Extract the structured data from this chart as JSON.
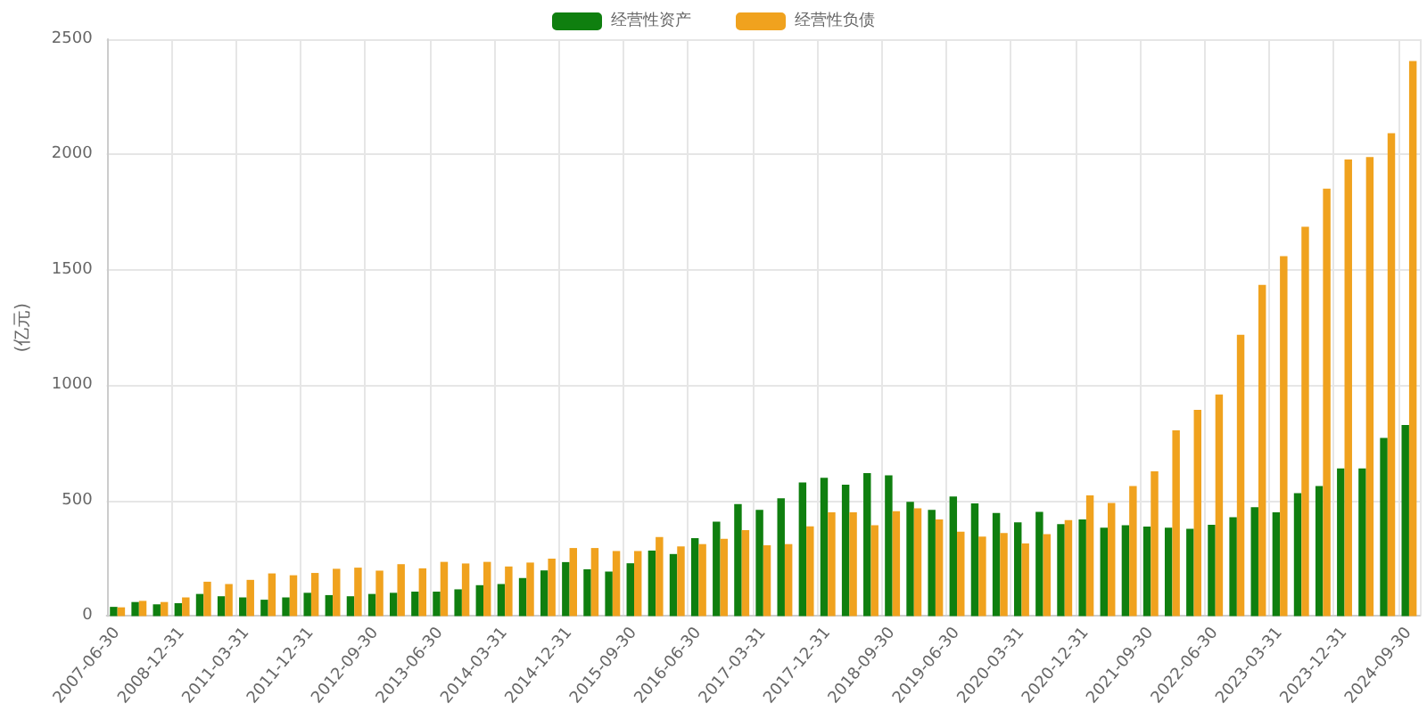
{
  "chart_data": {
    "type": "bar",
    "ylabel": "(亿元)",
    "categories": [
      "2007-06-30",
      null,
      null,
      "2008-12-31",
      null,
      null,
      "2011-03-31",
      null,
      null,
      "2011-12-31",
      null,
      null,
      "2012-09-30",
      null,
      null,
      "2013-06-30",
      null,
      null,
      "2014-03-31",
      null,
      null,
      "2014-12-31",
      null,
      null,
      "2015-09-30",
      null,
      null,
      "2016-06-30",
      null,
      null,
      "2017-03-31",
      null,
      null,
      "2017-12-31",
      null,
      null,
      "2018-09-30",
      null,
      null,
      "2019-06-30",
      null,
      null,
      "2020-03-31",
      null,
      null,
      "2020-12-31",
      null,
      null,
      "2021-09-30",
      null,
      null,
      "2022-06-30",
      null,
      null,
      "2023-03-31",
      null,
      null,
      "2023-12-31",
      null,
      null,
      "2024-09-30"
    ],
    "series": [
      {
        "name": "经营性资产",
        "color": "#0f7f0f",
        "values": [
          40,
          61,
          51,
          56,
          96,
          86,
          81,
          71,
          81,
          101,
          91,
          86,
          96,
          101,
          106,
          106,
          116,
          134,
          139,
          165,
          198,
          234,
          203,
          193,
          229,
          284,
          269,
          338,
          409,
          485,
          460,
          511,
          579,
          599,
          569,
          620,
          610,
          495,
          460,
          518,
          488,
          447,
          406,
          452,
          399,
          419,
          383,
          394,
          388,
          383,
          378,
          396,
          429,
          472,
          450,
          533,
          564,
          640,
          640,
          772,
          828
        ]
      },
      {
        "name": "经营性负债",
        "color": "#f0a21e",
        "values": [
          38,
          66,
          61,
          81,
          149,
          139,
          157,
          185,
          177,
          187,
          205,
          210,
          197,
          225,
          207,
          235,
          228,
          235,
          215,
          232,
          249,
          295,
          295,
          282,
          282,
          343,
          302,
          312,
          335,
          373,
          307,
          312,
          389,
          450,
          450,
          394,
          455,
          467,
          419,
          366,
          345,
          360,
          315,
          355,
          416,
          523,
          490,
          564,
          627,
          805,
          894,
          960,
          1219,
          1435,
          1560,
          1687,
          1852,
          1979,
          1989,
          2093,
          2405
        ]
      }
    ],
    "ylim": [
      0,
      2500
    ],
    "yticks": [
      0,
      500,
      1000,
      1500,
      2000,
      2500
    ],
    "grid": true,
    "legend": "top"
  }
}
